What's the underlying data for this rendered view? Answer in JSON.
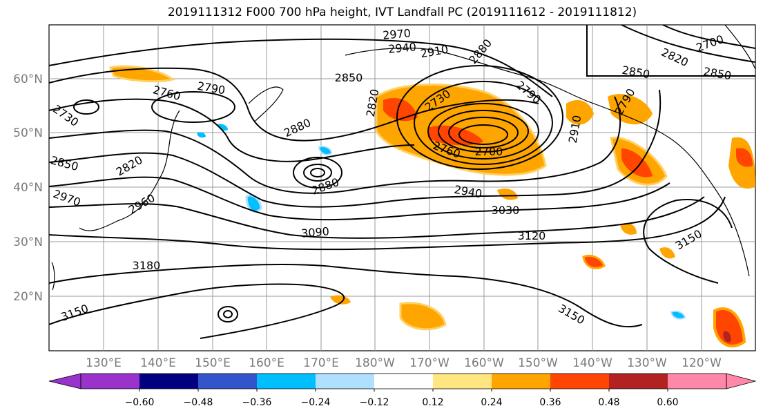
{
  "title": "2019111312 F000 700 hPa height, IVT Landfall PC (2019111612 - 2019111812)",
  "lat_labels": [
    "60°N",
    "50°N",
    "40°N",
    "30°N",
    "20°N"
  ],
  "lon_labels": [
    "130°E",
    "140°E",
    "150°E",
    "160°E",
    "170°E",
    "180°W",
    "170°W",
    "160°W",
    "150°W",
    "140°W",
    "130°W",
    "120°W"
  ],
  "contour_labels": [
    "2970",
    "2940",
    "2910",
    "2880",
    "2850",
    "2790",
    "2760",
    "2730",
    "2820",
    "2850",
    "2880",
    "2880",
    "2820",
    "2850",
    "2970",
    "2960",
    "3090",
    "3180",
    "3150",
    "2730",
    "2760",
    "2700",
    "2940",
    "3030",
    "3120",
    "3150",
    "2790",
    "2910",
    "2820",
    "2850",
    "2700",
    "2790",
    "3150"
  ],
  "colorbar": {
    "colors": [
      "#9933cc",
      "#000080",
      "#3355cc",
      "#00bfff",
      "#b0e0ff",
      "#ffffff",
      "#ffe680",
      "#ffa500",
      "#ff4500",
      "#b22222",
      "#ff88aa"
    ],
    "tick_labels": [
      "−0.60",
      "−0.48",
      "−0.36",
      "−0.24",
      "−0.12",
      "0.12",
      "0.24",
      "0.36",
      "0.48",
      "0.60"
    ]
  }
}
